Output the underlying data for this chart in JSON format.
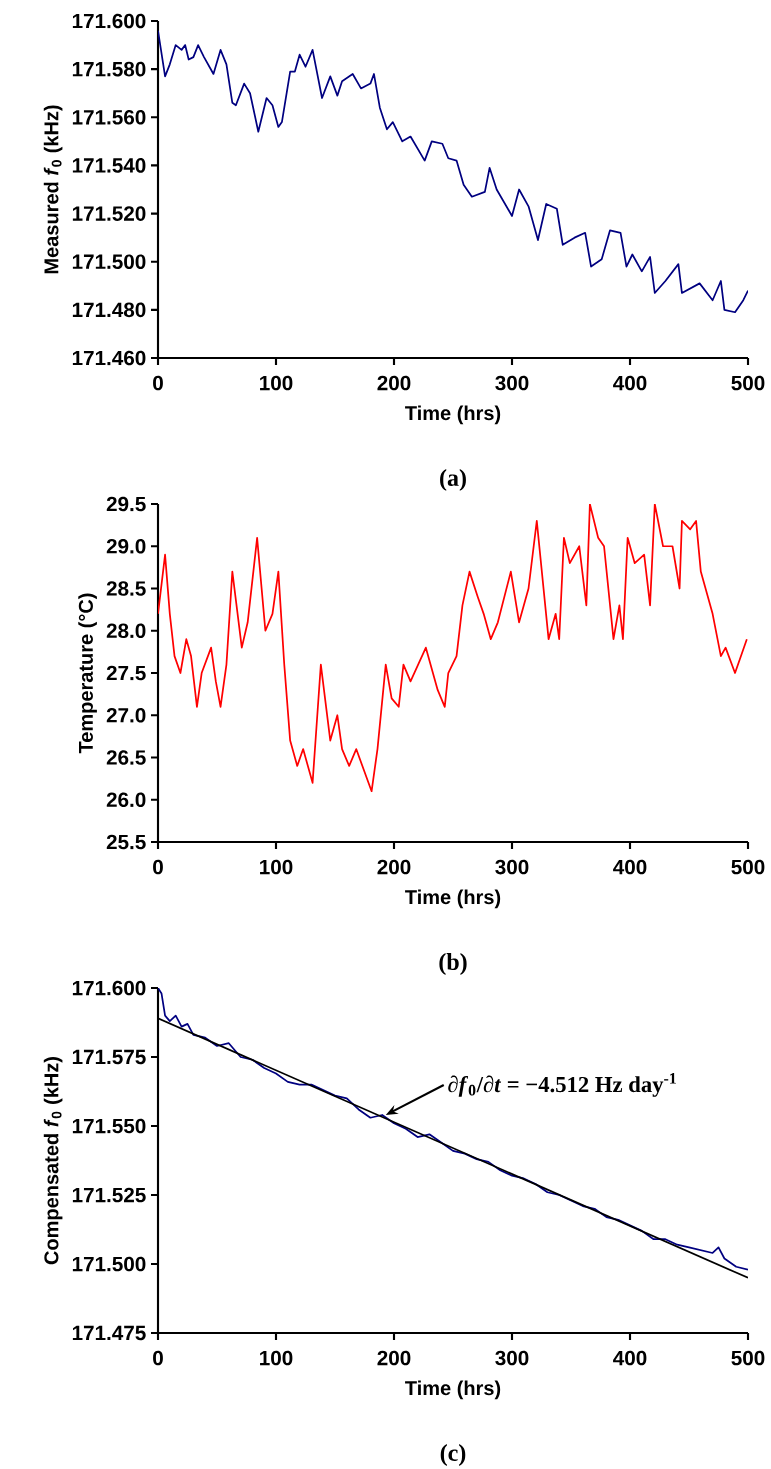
{
  "chart_data": [
    {
      "type": "line",
      "xlabel": "Time (hrs)",
      "ylabel": "Measured *f*$_{0}$ (kHz)",
      "annotations": [
        "(a)"
      ],
      "xlim": [
        0,
        500
      ],
      "xticks": [
        0,
        100,
        200,
        300,
        400,
        500
      ],
      "ylim": [
        171.46,
        171.6
      ],
      "yticks": [
        {
          "value": 171.46,
          "label": "171.460"
        },
        {
          "value": 171.48,
          "label": "171.480"
        },
        {
          "value": 171.5,
          "label": "171.500"
        },
        {
          "value": 171.52,
          "label": "171.520"
        },
        {
          "value": 171.54,
          "label": "171.540"
        },
        {
          "value": 171.56,
          "label": "171.560"
        },
        {
          "value": 171.58,
          "label": "171.580"
        },
        {
          "value": 171.6,
          "label": "171.600"
        }
      ],
      "series": [
        {
          "color": "#000080",
          "x": [
            0,
            6,
            10,
            15,
            20,
            23,
            26,
            30,
            34,
            39,
            47,
            53,
            58,
            63,
            66,
            73,
            78,
            85,
            92,
            97,
            102,
            105,
            112,
            116,
            120,
            125,
            131,
            139,
            146,
            152,
            156,
            165,
            172,
            180,
            183,
            188,
            194,
            199,
            207,
            214,
            226,
            232,
            241,
            246,
            253,
            259,
            266,
            277,
            281,
            287,
            300,
            306,
            314,
            322,
            329,
            338,
            343,
            353,
            362,
            367,
            376,
            383,
            392,
            397,
            402,
            410,
            417,
            421,
            430,
            441,
            444,
            459,
            470,
            477,
            480,
            489,
            496,
            500
          ],
          "values": [
            171.596,
            171.577,
            171.582,
            171.59,
            171.588,
            171.59,
            171.584,
            171.585,
            171.59,
            171.585,
            171.578,
            171.588,
            171.582,
            171.566,
            171.565,
            171.574,
            171.57,
            171.554,
            171.568,
            171.565,
            171.556,
            171.558,
            171.579,
            171.579,
            171.586,
            171.581,
            171.588,
            171.568,
            171.577,
            171.569,
            171.575,
            171.578,
            171.572,
            171.574,
            171.578,
            171.564,
            171.555,
            171.558,
            171.55,
            171.552,
            171.542,
            171.55,
            171.549,
            171.543,
            171.542,
            171.532,
            171.527,
            171.529,
            171.539,
            171.53,
            171.519,
            171.53,
            171.523,
            171.509,
            171.524,
            171.522,
            171.507,
            171.51,
            171.512,
            171.498,
            171.501,
            171.513,
            171.512,
            171.498,
            171.503,
            171.496,
            171.502,
            171.487,
            171.492,
            171.499,
            171.487,
            171.491,
            171.484,
            171.492,
            171.48,
            171.479,
            171.484,
            171.488
          ]
        }
      ]
    },
    {
      "type": "line",
      "xlabel": "Time (hrs)",
      "ylabel": "Temperature (°C)",
      "annotations": [
        "(b)"
      ],
      "xlim": [
        0,
        500
      ],
      "xticks": [
        0,
        100,
        200,
        300,
        400,
        500
      ],
      "ylim": [
        25.5,
        29.5
      ],
      "yticks": [
        25.5,
        {
          "value": 26,
          "label": "26.0"
        },
        26.5,
        {
          "value": 27,
          "label": "27.0"
        },
        27.5,
        {
          "value": 28,
          "label": "28.0"
        },
        28.5,
        {
          "value": 29,
          "label": "29.0"
        },
        29.5
      ],
      "series": [
        {
          "color": "#ff0000",
          "x": [
            0,
            6,
            10,
            14,
            19,
            24,
            28,
            33,
            37,
            45,
            49,
            53,
            58,
            63,
            71,
            76,
            84,
            91,
            97,
            102,
            107,
            112,
            118,
            123,
            131,
            138,
            146,
            152,
            156,
            162,
            168,
            181,
            186,
            193,
            198,
            204,
            208,
            214,
            227,
            237,
            243,
            246,
            253,
            258,
            264,
            271,
            276,
            282,
            288,
            299,
            306,
            314,
            321,
            331,
            337,
            340,
            344,
            349,
            357,
            363,
            366,
            373,
            378,
            386,
            391,
            394,
            398,
            404,
            412,
            417,
            421,
            428,
            436,
            442,
            444,
            451,
            456,
            460,
            470,
            477,
            481,
            489,
            499
          ],
          "values": [
            28.2,
            28.9,
            28.2,
            27.7,
            27.5,
            27.9,
            27.7,
            27.1,
            27.5,
            27.8,
            27.4,
            27.1,
            27.6,
            28.7,
            27.8,
            28.1,
            29.1,
            28.0,
            28.2,
            28.7,
            27.6,
            26.7,
            26.4,
            26.6,
            26.2,
            27.6,
            26.7,
            27.0,
            26.6,
            26.4,
            26.6,
            26.1,
            26.6,
            27.6,
            27.2,
            27.1,
            27.6,
            27.4,
            27.8,
            27.3,
            27.1,
            27.5,
            27.7,
            28.3,
            28.7,
            28.4,
            28.2,
            27.9,
            28.1,
            28.7,
            28.1,
            28.5,
            29.3,
            27.9,
            28.2,
            27.9,
            29.1,
            28.8,
            29.0,
            28.3,
            29.5,
            29.1,
            29.0,
            27.9,
            28.3,
            27.9,
            29.1,
            28.8,
            28.9,
            28.3,
            29.5,
            29.0,
            29.0,
            28.5,
            29.3,
            29.2,
            29.3,
            28.7,
            28.2,
            27.7,
            27.8,
            27.5,
            27.9
          ]
        }
      ]
    },
    {
      "type": "line",
      "xlabel": "Time (hrs)",
      "ylabel": "Compensated *f*$_{0}$ (kHz)",
      "annotations": [
        {
          "text": "∂*f*$_{0}$/∂*t* = −4.512 Hz day$^{-1}$",
          "x": 193,
          "y": 171.554
        },
        "(c)"
      ],
      "xlim": [
        0,
        500
      ],
      "xticks": [
        0,
        100,
        200,
        300,
        400,
        500
      ],
      "ylim": [
        171.475,
        171.6
      ],
      "yticks": [
        171.475,
        {
          "value": 171.5,
          "label": "171.500"
        },
        171.525,
        {
          "value": 171.55,
          "label": "171.550"
        },
        171.575,
        {
          "value": 171.6,
          "label": "171.600"
        }
      ],
      "series": [
        {
          "color": "#000080",
          "x": [
            0,
            3,
            6,
            10,
            15,
            20,
            25,
            30,
            40,
            50,
            60,
            70,
            80,
            90,
            100,
            110,
            120,
            130,
            140,
            150,
            160,
            170,
            180,
            190,
            200,
            210,
            220,
            230,
            240,
            250,
            260,
            270,
            280,
            290,
            300,
            310,
            320,
            330,
            340,
            350,
            360,
            370,
            380,
            390,
            400,
            410,
            420,
            430,
            440,
            450,
            460,
            470,
            475,
            480,
            490,
            500
          ],
          "values": [
            171.6,
            171.598,
            171.59,
            171.588,
            171.59,
            171.586,
            171.587,
            171.583,
            171.582,
            171.579,
            171.58,
            171.575,
            171.574,
            171.571,
            171.569,
            171.566,
            171.565,
            171.565,
            171.563,
            171.561,
            171.56,
            171.556,
            171.553,
            171.554,
            171.551,
            171.549,
            171.546,
            171.547,
            171.544,
            171.541,
            171.54,
            171.538,
            171.537,
            171.534,
            171.532,
            171.531,
            171.529,
            171.526,
            171.525,
            171.523,
            171.521,
            171.52,
            171.517,
            171.516,
            171.514,
            171.512,
            171.509,
            171.509,
            171.507,
            171.506,
            171.505,
            171.504,
            171.506,
            171.502,
            171.499,
            171.498
          ]
        },
        {
          "type": "line",
          "color": "#000000",
          "x": [
            0,
            500
          ],
          "values": [
            171.589,
            171.495
          ]
        }
      ]
    }
  ]
}
